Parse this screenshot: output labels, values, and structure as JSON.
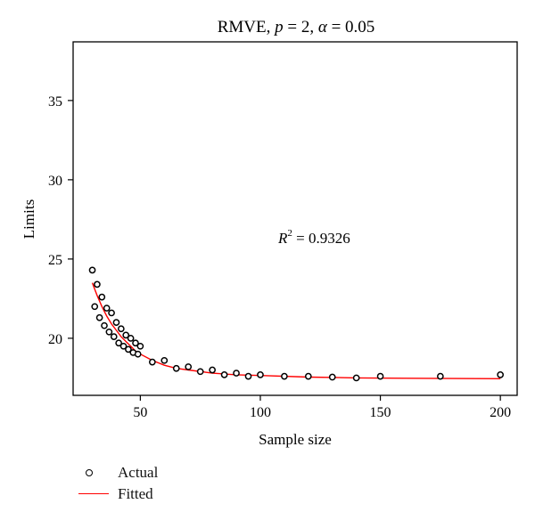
{
  "chart_data": {
    "type": "scatter",
    "title_prefix": "RMVE, ",
    "title_p_var": "p",
    "title_mid": " = 2, ",
    "title_alpha_var": "α",
    "title_suffix": " = 0.05",
    "xlabel": "Sample size",
    "ylabel": "Limits",
    "xlim": [
      22,
      207
    ],
    "ylim": [
      16.4,
      38.7
    ],
    "xticks": [
      50,
      100,
      150,
      200
    ],
    "yticks": [
      20,
      25,
      30,
      35
    ],
    "grid": false,
    "annotation": {
      "base": "R",
      "sup": "2",
      "rest": " = 0.9326"
    },
    "legend_position": "bottom-left, below plot",
    "colors": {
      "actual": "#000000",
      "fitted": "#ff0000"
    },
    "series": [
      {
        "name": "Actual",
        "marker": "open-circle",
        "x": [
          30,
          31,
          32,
          33,
          34,
          35,
          36,
          37,
          38,
          39,
          40,
          41,
          42,
          43,
          44,
          45,
          46,
          47,
          48,
          49,
          50,
          55,
          60,
          65,
          70,
          75,
          80,
          85,
          90,
          95,
          100,
          110,
          120,
          130,
          140,
          150,
          175,
          200
        ],
        "y": [
          24.3,
          22.0,
          23.4,
          21.3,
          22.6,
          20.8,
          21.9,
          20.4,
          21.6,
          20.1,
          21.0,
          19.7,
          20.6,
          19.5,
          20.2,
          19.3,
          20.0,
          19.1,
          19.7,
          19.0,
          19.5,
          18.5,
          18.6,
          18.1,
          18.2,
          17.9,
          18.0,
          17.7,
          17.8,
          17.6,
          17.7,
          17.6,
          17.6,
          17.55,
          17.5,
          17.6,
          17.6,
          17.7
        ]
      },
      {
        "name": "Fitted",
        "type": "line",
        "x": [
          30,
          32,
          34,
          36,
          38,
          40,
          42,
          44,
          46,
          48,
          50,
          55,
          60,
          65,
          70,
          80,
          90,
          100,
          120,
          140,
          160,
          180,
          200
        ],
        "y": [
          23.5,
          22.7,
          22.0,
          21.4,
          20.9,
          20.5,
          20.1,
          19.8,
          19.5,
          19.2,
          19.0,
          18.6,
          18.3,
          18.1,
          18.0,
          17.8,
          17.7,
          17.65,
          17.55,
          17.5,
          17.48,
          17.46,
          17.45
        ]
      }
    ]
  }
}
